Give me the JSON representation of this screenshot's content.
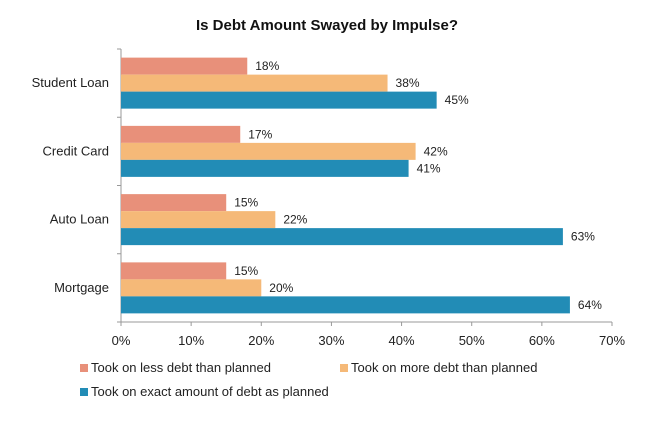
{
  "chart_data": {
    "type": "bar",
    "orientation": "horizontal",
    "title": "Is Debt Amount Swayed by Impulse?",
    "categories": [
      "Student Loan",
      "Credit Card",
      "Auto Loan",
      "Mortgage"
    ],
    "series": [
      {
        "name": "Took on less debt than planned",
        "color": "#E8907A",
        "values": [
          18,
          17,
          15,
          15
        ]
      },
      {
        "name": "Took on more debt than planned",
        "color": "#F5B978",
        "values": [
          38,
          42,
          22,
          20
        ]
      },
      {
        "name": "Took on exact amount of debt as planned",
        "color": "#228CB6",
        "values": [
          45,
          41,
          63,
          64
        ]
      }
    ],
    "xlim": [
      0,
      70
    ],
    "xticks": [
      0,
      10,
      20,
      30,
      40,
      50,
      60,
      70
    ],
    "tick_suffix": "%",
    "grid": false,
    "legend_position": "bottom"
  }
}
